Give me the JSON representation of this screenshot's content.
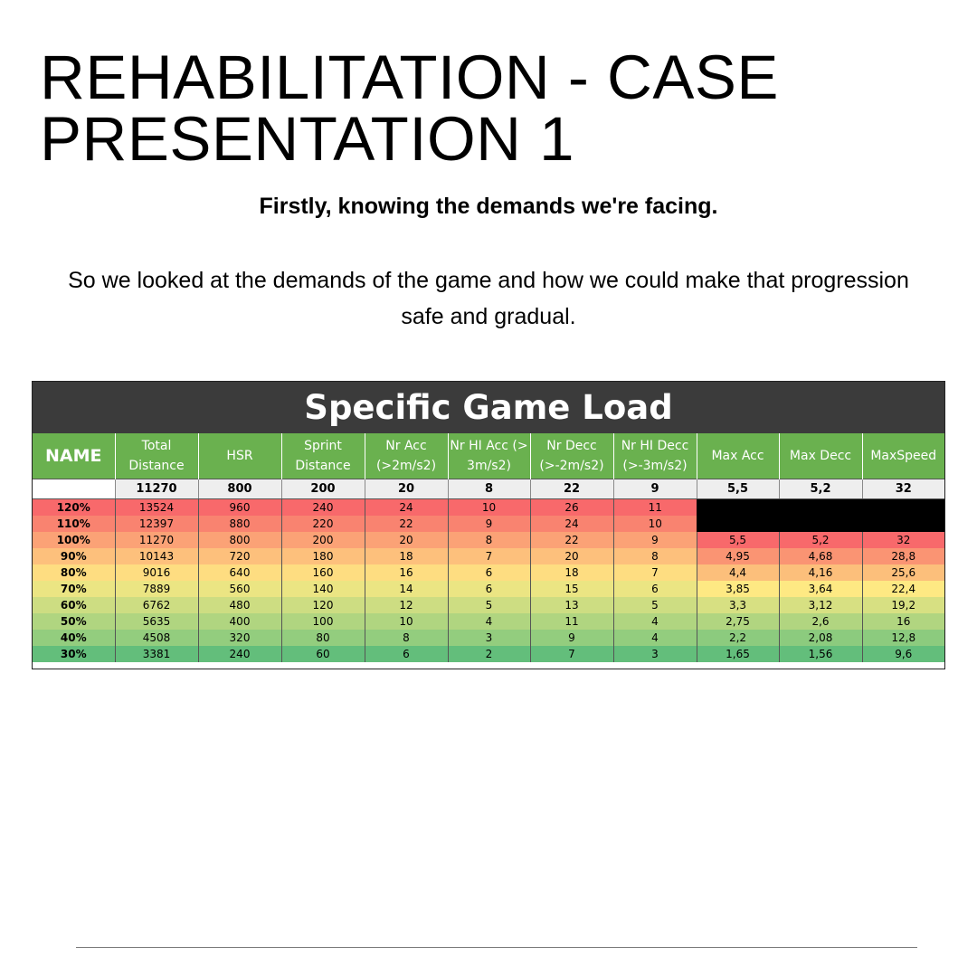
{
  "title_line1": "REHABILITATION - CASE",
  "title_line2": "PRESENTATION 1",
  "subtitle": "Firstly, knowing the demands we're facing.",
  "body_line1": "So we looked at the demands of the game and how we could make that progression",
  "body_line2": "safe and gradual.",
  "table": {
    "banner": "Specific Game Load",
    "name_header": "NAME",
    "headers": [
      "Total Distance",
      "HSR",
      "Sprint Distance",
      "Nr Acc (>2m/s2)",
      "Nr HI Acc (> 3m/s2)",
      "Nr Decc (>-2m/s2)",
      "Nr HI Decc (>-3m/s2)",
      "Max Acc",
      "Max Decc",
      "MaxSpeed"
    ],
    "baseline": [
      "11270",
      "800",
      "200",
      "20",
      "8",
      "22",
      "9",
      "5,5",
      "5,2",
      "32"
    ],
    "rows": [
      {
        "pct": "120%",
        "values": [
          "13524",
          "960",
          "240",
          "24",
          "10",
          "26",
          "11"
        ],
        "max": null,
        "color": "#f8696b",
        "max_color": null
      },
      {
        "pct": "110%",
        "values": [
          "12397",
          "880",
          "220",
          "22",
          "9",
          "24",
          "10"
        ],
        "max": null,
        "color": "#f98370",
        "max_color": null
      },
      {
        "pct": "100%",
        "values": [
          "11270",
          "800",
          "200",
          "20",
          "8",
          "22",
          "9"
        ],
        "max": [
          "5,5",
          "5,2",
          "32"
        ],
        "color": "#fba276",
        "max_color": "#f8696b"
      },
      {
        "pct": "90%",
        "values": [
          "10143",
          "720",
          "180",
          "18",
          "7",
          "20",
          "8"
        ],
        "max": [
          "4,95",
          "4,68",
          "28,8"
        ],
        "color": "#fdc07c",
        "max_color": "#fa9473"
      },
      {
        "pct": "80%",
        "values": [
          "9016",
          "640",
          "160",
          "16",
          "6",
          "18",
          "7"
        ],
        "max": [
          "4,4",
          "4,16",
          "25,6"
        ],
        "color": "#fedd81",
        "max_color": "#fcbf7b"
      },
      {
        "pct": "70%",
        "values": [
          "7889",
          "560",
          "140",
          "14",
          "6",
          "15",
          "6"
        ],
        "max": [
          "3,85",
          "3,64",
          "22,4"
        ],
        "color": "#ebe583",
        "max_color": "#fee983"
      },
      {
        "pct": "60%",
        "values": [
          "6762",
          "480",
          "120",
          "12",
          "5",
          "13",
          "5"
        ],
        "max": [
          "3,3",
          "3,12",
          "19,2"
        ],
        "color": "#cddd82",
        "max_color": "#d7e082"
      },
      {
        "pct": "50%",
        "values": [
          "5635",
          "400",
          "100",
          "10",
          "4",
          "11",
          "4"
        ],
        "max": [
          "2,75",
          "2,6",
          "16"
        ],
        "color": "#b0d580",
        "max_color": "#b1d580"
      },
      {
        "pct": "40%",
        "values": [
          "4508",
          "320",
          "80",
          "8",
          "3",
          "9",
          "4"
        ],
        "max": [
          "2,2",
          "2,08",
          "12,8"
        ],
        "color": "#93cd7e",
        "max_color": "#8ccb7e"
      },
      {
        "pct": "30%",
        "values": [
          "3381",
          "240",
          "60",
          "6",
          "2",
          "7",
          "3"
        ],
        "max": [
          "1,65",
          "1,56",
          "9,6"
        ],
        "color": "#63be7b",
        "max_color": "#63be7b"
      }
    ]
  }
}
